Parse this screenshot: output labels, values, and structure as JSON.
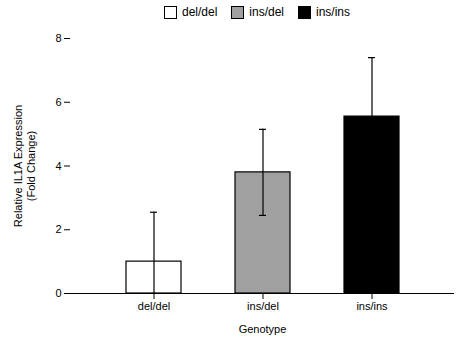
{
  "chart_data": {
    "type": "bar",
    "categories": [
      "del/del",
      "ins/del",
      "ins/ins"
    ],
    "values": [
      1.0,
      3.8,
      5.55
    ],
    "errors_upper": [
      1.55,
      1.35,
      1.85
    ],
    "errors_lower": [
      1.0,
      1.35,
      1.85
    ],
    "colors": [
      "#ffffff",
      "#a0a0a0",
      "#000000"
    ],
    "xlabel": "Genotype",
    "ylabel": "Relative IL1A Expression\n(Fold Change)",
    "ylim": [
      0,
      8
    ],
    "yticks": [
      0,
      2,
      4,
      6,
      8
    ],
    "legend": "upper center"
  }
}
